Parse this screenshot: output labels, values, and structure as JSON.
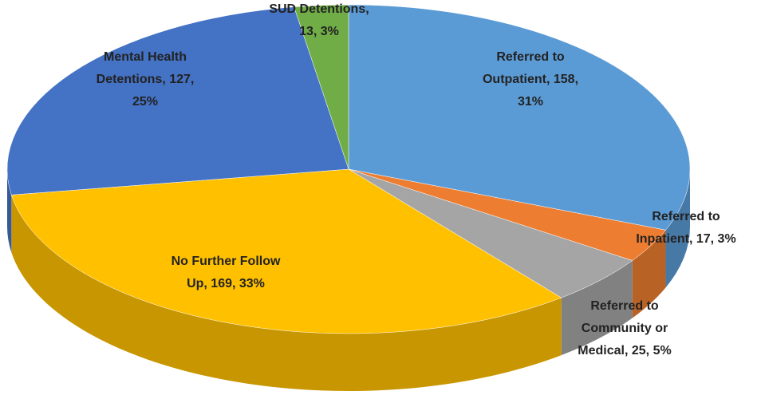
{
  "chart_data": {
    "type": "pie3d",
    "values": [
      158,
      17,
      25,
      169,
      127,
      13
    ],
    "value_labels": [
      "Referred to Outpatient, 158, 31%",
      "Referred to Inpatient, 17, 3%",
      "Referred to Community or Medical, 25, 5%",
      "No Further Follow Up, 169, 33%",
      "Mental Health Detentions, 127, 25%",
      "SUD Detentions, 13, 3%"
    ],
    "colors": [
      "#5b9bd5",
      "#ed7d31",
      "#a5a5a5",
      "#ffc000",
      "#4472c4",
      "#70ad47"
    ]
  }
}
